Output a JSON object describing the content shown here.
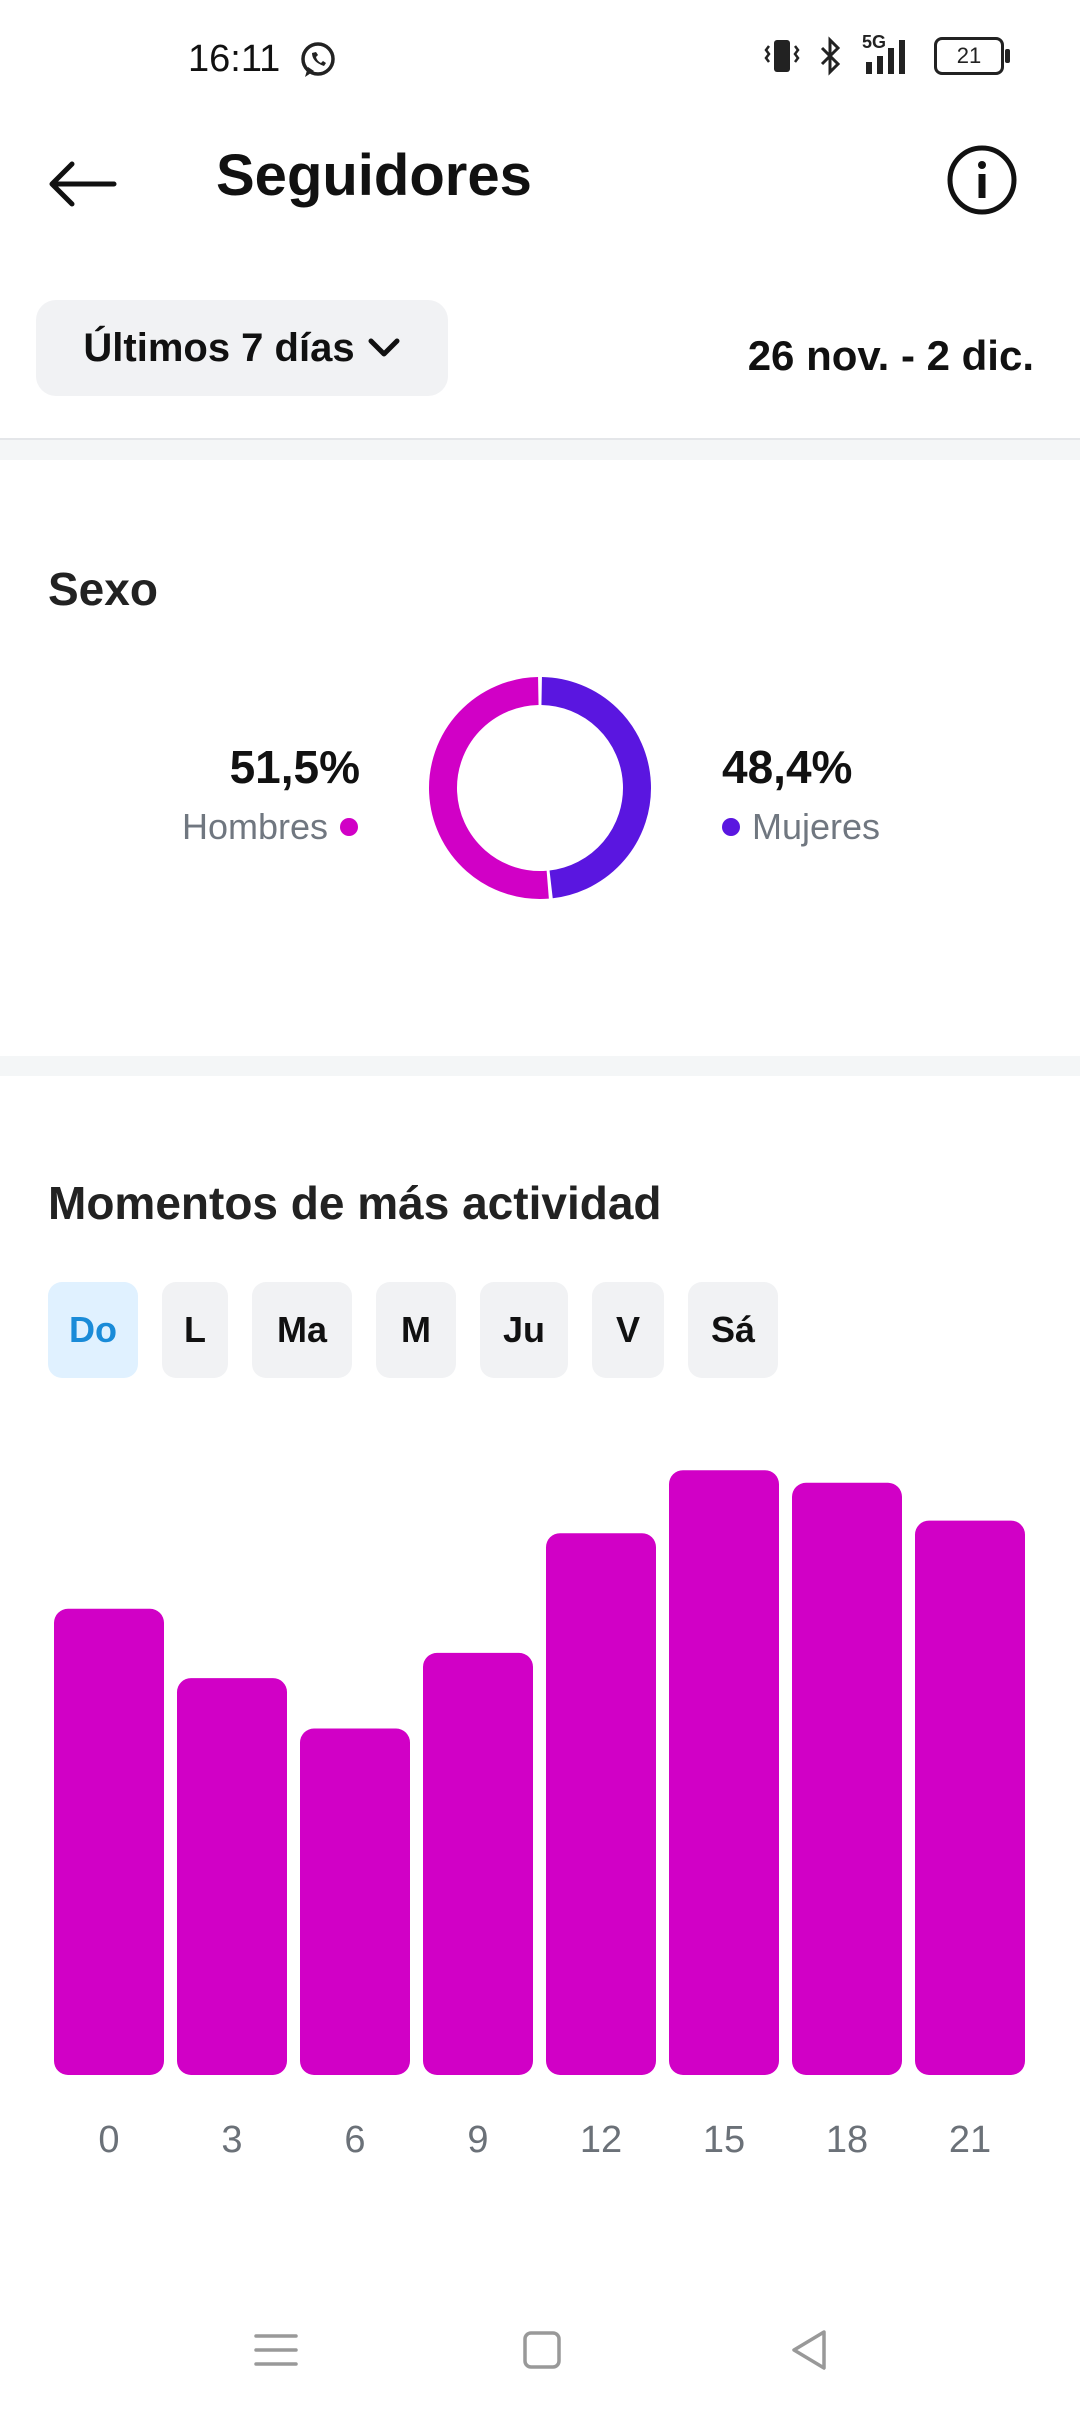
{
  "status_bar": {
    "time": "16:11",
    "network": "5G",
    "battery": "21",
    "icons": [
      "whatsapp-icon",
      "vibrate-icon",
      "bluetooth-icon",
      "signal-icon",
      "battery-icon"
    ]
  },
  "header": {
    "title": "Seguidores",
    "back_icon": "arrow-left-icon",
    "info_icon": "info-icon"
  },
  "filter": {
    "range_label": "Últimos 7 días",
    "date_range": "26 nov. - 2 dic."
  },
  "gender": {
    "title": "Sexo",
    "men_pct": "51,5%",
    "men_label": "Hombres",
    "women_pct": "48,4%",
    "women_label": "Mujeres"
  },
  "activity": {
    "title": "Momentos de más actividad",
    "days": [
      "Do",
      "L",
      "Ma",
      "M",
      "Ju",
      "V",
      "Sá"
    ],
    "selected_day": "Do"
  },
  "chart_data": [
    {
      "type": "pie",
      "categories": [
        "Hombres",
        "Mujeres"
      ],
      "values": [
        51.5,
        48.4
      ],
      "colors": [
        "#d100c6",
        "#5a16e0"
      ]
    },
    {
      "type": "bar",
      "categories": [
        "0",
        "3",
        "6",
        "9",
        "12",
        "15",
        "18",
        "21"
      ],
      "values": [
        74,
        63,
        55,
        67,
        86,
        96,
        94,
        88
      ],
      "ylim": [
        0,
        100
      ],
      "color": "#d100c6",
      "grid": false
    }
  ],
  "colors": {
    "accent_magenta": "#d100c6",
    "accent_purple": "#5a16e0",
    "selected_tab_bg": "#e0f1ff",
    "selected_tab_text": "#1a8bd8"
  },
  "nav_bar": {
    "icons": [
      "menu-icon",
      "home-square-icon",
      "back-triangle-icon"
    ]
  }
}
